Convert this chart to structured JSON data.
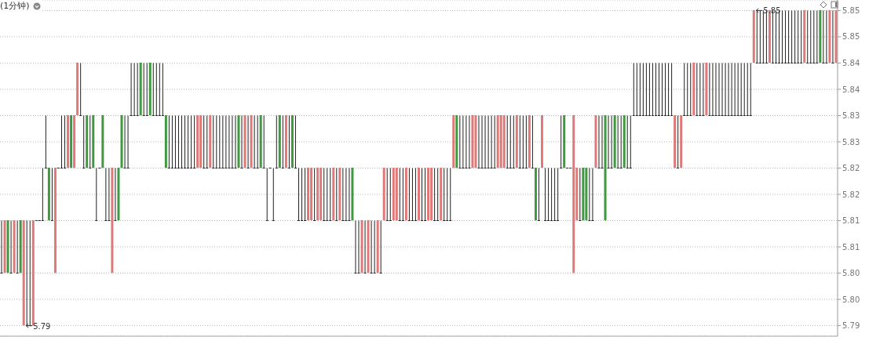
{
  "chart_data": {
    "type": "candlestick",
    "title": "(1分钟)",
    "categories": [
      null,
      null,
      null,
      null,
      null,
      null,
      null,
      null,
      null,
      null,
      null,
      null,
      null,
      null,
      null,
      null,
      null,
      null,
      null,
      null,
      null,
      null,
      null,
      null,
      null,
      null,
      null,
      null,
      null,
      null,
      null,
      null,
      null,
      null,
      null,
      null,
      null,
      null,
      null,
      null,
      null,
      null,
      null,
      null,
      null,
      null,
      null,
      null,
      null,
      null,
      null,
      null,
      null,
      null,
      null,
      null,
      null,
      null,
      null,
      null,
      null,
      null,
      null,
      null,
      null,
      null,
      null,
      null,
      null,
      null,
      null,
      null,
      null,
      null,
      null,
      null,
      null,
      null,
      null,
      null,
      null,
      null,
      null,
      null,
      null,
      null,
      null,
      null,
      null,
      null,
      null,
      null,
      null,
      null,
      null,
      null,
      null,
      null,
      null,
      null,
      null,
      null,
      null,
      null,
      null,
      null,
      null,
      null,
      null,
      null,
      null,
      null,
      null,
      null,
      null,
      null,
      null,
      null,
      null,
      null,
      null,
      null,
      null,
      null,
      null,
      null,
      null,
      null,
      null,
      null,
      null,
      null,
      null,
      null,
      null,
      null,
      null,
      null,
      null,
      null,
      null,
      null,
      null,
      null,
      null,
      null,
      null,
      null,
      null,
      null,
      null,
      null,
      null,
      null,
      null,
      null,
      null,
      null,
      null,
      null,
      null,
      null,
      null,
      null,
      null,
      null,
      null,
      null,
      null,
      null,
      null,
      null,
      null,
      null,
      null,
      null,
      null,
      null,
      null,
      null,
      null,
      null,
      null,
      null,
      null,
      null,
      null,
      null,
      null,
      null,
      null,
      null,
      null,
      null,
      null,
      null,
      null,
      null,
      null,
      null,
      null,
      null,
      null,
      null,
      null,
      null,
      null,
      null,
      null,
      null,
      null,
      null,
      null,
      null,
      null,
      null,
      null,
      null,
      null,
      null,
      null,
      null,
      null,
      null,
      null,
      null,
      null,
      null,
      null,
      null,
      null,
      null,
      null,
      null,
      null,
      null,
      null,
      null,
      null,
      null,
      null,
      null,
      null,
      null,
      null,
      null,
      null,
      null,
      null,
      null,
      null,
      null,
      null,
      null,
      null,
      null,
      null,
      null,
      null,
      null,
      null,
      null,
      null,
      null,
      null
    ],
    "ohlc": [
      [
        5.8,
        5.81,
        5.8,
        5.8
      ],
      [
        5.8,
        5.81,
        5.8,
        5.81
      ],
      [
        5.81,
        5.81,
        5.8,
        5.8
      ],
      [
        5.8,
        5.81,
        5.8,
        5.8
      ],
      [
        5.8,
        5.81,
        5.8,
        5.81
      ],
      [
        5.8,
        5.81,
        5.8,
        5.8
      ],
      [
        5.81,
        5.81,
        5.8,
        5.8
      ],
      [
        5.79,
        5.81,
        5.79,
        5.81
      ],
      [
        5.79,
        5.81,
        5.79,
        5.79
      ],
      [
        5.79,
        5.81,
        5.79,
        5.79
      ],
      [
        5.79,
        5.81,
        5.79,
        5.81
      ],
      [
        5.81,
        5.81,
        5.81,
        5.81
      ],
      [
        5.81,
        5.81,
        5.81,
        5.81
      ],
      [
        5.81,
        5.82,
        5.81,
        5.81
      ],
      [
        5.82,
        5.83,
        5.82,
        5.82
      ],
      [
        5.82,
        5.82,
        5.81,
        5.81
      ],
      [
        5.81,
        5.82,
        5.81,
        5.81
      ],
      [
        5.8,
        5.82,
        5.8,
        5.82
      ],
      [
        5.82,
        5.82,
        5.82,
        5.82
      ],
      [
        5.82,
        5.83,
        5.82,
        5.82
      ],
      [
        5.82,
        5.83,
        5.82,
        5.82
      ],
      [
        5.82,
        5.83,
        5.82,
        5.83
      ],
      [
        5.83,
        5.83,
        5.82,
        5.82
      ],
      [
        5.82,
        5.83,
        5.82,
        5.83
      ],
      [
        5.83,
        5.84,
        5.83,
        5.84
      ],
      [
        5.83,
        5.84,
        5.83,
        5.83
      ],
      [
        5.82,
        5.83,
        5.82,
        5.82
      ],
      [
        5.83,
        5.83,
        5.82,
        5.82
      ],
      [
        5.82,
        5.83,
        5.82,
        5.82
      ],
      [
        5.83,
        5.83,
        5.82,
        5.82
      ],
      [
        5.81,
        5.82,
        5.81,
        5.81
      ],
      [
        5.82,
        5.82,
        5.82,
        5.82
      ],
      [
        5.83,
        5.83,
        5.82,
        5.82
      ],
      [
        5.81,
        5.82,
        5.81,
        5.81
      ],
      [
        5.81,
        5.82,
        5.81,
        5.81
      ],
      [
        5.8,
        5.82,
        5.8,
        5.82
      ],
      [
        5.81,
        5.82,
        5.81,
        5.81
      ],
      [
        5.82,
        5.82,
        5.81,
        5.81
      ],
      [
        5.83,
        5.83,
        5.82,
        5.82
      ],
      [
        5.82,
        5.83,
        5.82,
        5.82
      ],
      [
        5.82,
        5.83,
        5.82,
        5.82
      ],
      [
        5.83,
        5.84,
        5.83,
        5.83
      ],
      [
        5.83,
        5.84,
        5.83,
        5.83
      ],
      [
        5.83,
        5.84,
        5.83,
        5.83
      ],
      [
        5.84,
        5.84,
        5.83,
        5.83
      ],
      [
        5.83,
        5.84,
        5.83,
        5.83
      ],
      [
        5.83,
        5.84,
        5.83,
        5.83
      ],
      [
        5.84,
        5.84,
        5.83,
        5.83
      ],
      [
        5.83,
        5.84,
        5.83,
        5.83
      ],
      [
        5.83,
        5.84,
        5.83,
        5.83
      ],
      [
        5.83,
        5.84,
        5.83,
        5.83
      ],
      [
        5.83,
        5.84,
        5.83,
        5.83
      ],
      [
        5.83,
        5.83,
        5.82,
        5.82
      ],
      [
        5.82,
        5.83,
        5.82,
        5.82
      ],
      [
        5.82,
        5.83,
        5.82,
        5.82
      ],
      [
        5.82,
        5.83,
        5.82,
        5.82
      ],
      [
        5.82,
        5.83,
        5.82,
        5.82
      ],
      [
        5.82,
        5.83,
        5.82,
        5.82
      ],
      [
        5.82,
        5.83,
        5.82,
        5.82
      ],
      [
        5.82,
        5.83,
        5.82,
        5.82
      ],
      [
        5.82,
        5.83,
        5.82,
        5.82
      ],
      [
        5.82,
        5.83,
        5.82,
        5.82
      ],
      [
        5.82,
        5.83,
        5.82,
        5.83
      ],
      [
        5.82,
        5.83,
        5.82,
        5.83
      ],
      [
        5.82,
        5.83,
        5.82,
        5.82
      ],
      [
        5.82,
        5.83,
        5.82,
        5.82
      ],
      [
        5.82,
        5.83,
        5.82,
        5.83
      ],
      [
        5.82,
        5.83,
        5.82,
        5.82
      ],
      [
        5.82,
        5.83,
        5.82,
        5.82
      ],
      [
        5.82,
        5.83,
        5.82,
        5.82
      ],
      [
        5.82,
        5.83,
        5.82,
        5.82
      ],
      [
        5.82,
        5.83,
        5.82,
        5.82
      ],
      [
        5.82,
        5.83,
        5.82,
        5.82
      ],
      [
        5.82,
        5.83,
        5.82,
        5.82
      ],
      [
        5.82,
        5.83,
        5.82,
        5.82
      ],
      [
        5.83,
        5.83,
        5.82,
        5.82
      ],
      [
        5.82,
        5.83,
        5.82,
        5.82
      ],
      [
        5.82,
        5.83,
        5.82,
        5.83
      ],
      [
        5.82,
        5.83,
        5.82,
        5.82
      ],
      [
        5.82,
        5.83,
        5.82,
        5.83
      ],
      [
        5.82,
        5.83,
        5.82,
        5.82
      ],
      [
        5.82,
        5.83,
        5.82,
        5.82
      ],
      [
        5.83,
        5.83,
        5.82,
        5.82
      ],
      [
        5.82,
        5.83,
        5.82,
        5.82
      ],
      [
        5.81,
        5.82,
        5.81,
        5.81
      ],
      [
        5.82,
        5.82,
        5.82,
        5.82
      ],
      [
        5.81,
        5.82,
        5.81,
        5.81
      ],
      [
        5.82,
        5.83,
        5.82,
        5.82
      ],
      [
        5.83,
        5.83,
        5.82,
        5.82
      ],
      [
        5.82,
        5.83,
        5.82,
        5.82
      ],
      [
        5.82,
        5.83,
        5.82,
        5.83
      ],
      [
        5.82,
        5.83,
        5.82,
        5.82
      ],
      [
        5.83,
        5.83,
        5.82,
        5.82
      ],
      [
        5.82,
        5.83,
        5.82,
        5.82
      ],
      [
        5.81,
        5.82,
        5.81,
        5.81
      ],
      [
        5.81,
        5.82,
        5.81,
        5.81
      ],
      [
        5.81,
        5.82,
        5.81,
        5.81
      ],
      [
        5.81,
        5.82,
        5.81,
        5.82
      ],
      [
        5.81,
        5.82,
        5.81,
        5.82
      ],
      [
        5.81,
        5.82,
        5.81,
        5.81
      ],
      [
        5.81,
        5.82,
        5.81,
        5.82
      ],
      [
        5.81,
        5.82,
        5.81,
        5.82
      ],
      [
        5.81,
        5.82,
        5.81,
        5.81
      ],
      [
        5.81,
        5.82,
        5.81,
        5.81
      ],
      [
        5.81,
        5.82,
        5.81,
        5.81
      ],
      [
        5.81,
        5.82,
        5.81,
        5.82
      ],
      [
        5.81,
        5.82,
        5.81,
        5.81
      ],
      [
        5.81,
        5.82,
        5.81,
        5.82
      ],
      [
        5.81,
        5.82,
        5.81,
        5.81
      ],
      [
        5.81,
        5.82,
        5.81,
        5.81
      ],
      [
        5.81,
        5.82,
        5.81,
        5.81
      ],
      [
        5.82,
        5.82,
        5.81,
        5.81
      ],
      [
        5.8,
        5.81,
        5.8,
        5.8
      ],
      [
        5.8,
        5.81,
        5.8,
        5.8
      ],
      [
        5.8,
        5.81,
        5.8,
        5.81
      ],
      [
        5.8,
        5.81,
        5.8,
        5.8
      ],
      [
        5.8,
        5.81,
        5.8,
        5.81
      ],
      [
        5.8,
        5.81,
        5.8,
        5.8
      ],
      [
        5.8,
        5.81,
        5.8,
        5.8
      ],
      [
        5.8,
        5.81,
        5.8,
        5.81
      ],
      [
        5.8,
        5.81,
        5.8,
        5.8
      ],
      [
        5.81,
        5.82,
        5.81,
        5.82
      ],
      [
        5.81,
        5.82,
        5.81,
        5.81
      ],
      [
        5.81,
        5.82,
        5.81,
        5.81
      ],
      [
        5.81,
        5.82,
        5.81,
        5.82
      ],
      [
        5.81,
        5.82,
        5.81,
        5.82
      ],
      [
        5.81,
        5.82,
        5.81,
        5.81
      ],
      [
        5.81,
        5.82,
        5.81,
        5.81
      ],
      [
        5.81,
        5.82,
        5.81,
        5.82
      ],
      [
        5.81,
        5.82,
        5.81,
        5.81
      ],
      [
        5.81,
        5.82,
        5.81,
        5.81
      ],
      [
        5.81,
        5.82,
        5.81,
        5.81
      ],
      [
        5.81,
        5.82,
        5.81,
        5.82
      ],
      [
        5.81,
        5.82,
        5.81,
        5.81
      ],
      [
        5.81,
        5.82,
        5.81,
        5.81
      ],
      [
        5.81,
        5.82,
        5.81,
        5.82
      ],
      [
        5.81,
        5.82,
        5.81,
        5.82
      ],
      [
        5.81,
        5.82,
        5.81,
        5.81
      ],
      [
        5.81,
        5.82,
        5.81,
        5.81
      ],
      [
        5.81,
        5.82,
        5.81,
        5.82
      ],
      [
        5.81,
        5.82,
        5.81,
        5.81
      ],
      [
        5.81,
        5.82,
        5.81,
        5.81
      ],
      [
        5.81,
        5.82,
        5.81,
        5.81
      ],
      [
        5.82,
        5.83,
        5.82,
        5.83
      ],
      [
        5.83,
        5.83,
        5.82,
        5.82
      ],
      [
        5.82,
        5.83,
        5.82,
        5.82
      ],
      [
        5.82,
        5.83,
        5.82,
        5.82
      ],
      [
        5.82,
        5.83,
        5.82,
        5.82
      ],
      [
        5.82,
        5.83,
        5.82,
        5.82
      ],
      [
        5.82,
        5.83,
        5.82,
        5.83
      ],
      [
        5.82,
        5.83,
        5.82,
        5.83
      ],
      [
        5.82,
        5.83,
        5.82,
        5.82
      ],
      [
        5.82,
        5.83,
        5.82,
        5.82
      ],
      [
        5.82,
        5.83,
        5.82,
        5.82
      ],
      [
        5.82,
        5.83,
        5.82,
        5.82
      ],
      [
        5.82,
        5.83,
        5.82,
        5.82
      ],
      [
        5.82,
        5.83,
        5.82,
        5.82
      ],
      [
        5.82,
        5.83,
        5.82,
        5.83
      ],
      [
        5.82,
        5.83,
        5.82,
        5.83
      ],
      [
        5.82,
        5.83,
        5.82,
        5.83
      ],
      [
        5.82,
        5.83,
        5.82,
        5.82
      ],
      [
        5.82,
        5.83,
        5.82,
        5.82
      ],
      [
        5.82,
        5.83,
        5.82,
        5.82
      ],
      [
        5.82,
        5.83,
        5.82,
        5.83
      ],
      [
        5.82,
        5.83,
        5.82,
        5.82
      ],
      [
        5.82,
        5.83,
        5.82,
        5.82
      ],
      [
        5.82,
        5.83,
        5.82,
        5.82
      ],
      [
        5.82,
        5.83,
        5.82,
        5.83
      ],
      [
        5.82,
        5.83,
        5.82,
        5.82
      ],
      [
        5.82,
        5.82,
        5.81,
        5.81
      ],
      [
        5.81,
        5.82,
        5.81,
        5.81
      ],
      [
        5.82,
        5.83,
        5.82,
        5.83
      ],
      [
        5.81,
        5.82,
        5.81,
        5.81
      ],
      [
        5.81,
        5.82,
        5.81,
        5.81
      ],
      [
        5.81,
        5.82,
        5.81,
        5.81
      ],
      [
        5.81,
        5.82,
        5.81,
        5.81
      ],
      [
        5.81,
        5.82,
        5.81,
        5.81
      ],
      [
        5.82,
        5.83,
        5.82,
        5.82
      ],
      [
        5.83,
        5.83,
        5.82,
        5.82
      ],
      [
        5.82,
        5.82,
        5.82,
        5.82
      ],
      [
        5.82,
        5.82,
        5.82,
        5.82
      ],
      [
        5.8,
        5.83,
        5.8,
        5.83
      ],
      [
        5.81,
        5.82,
        5.81,
        5.82
      ],
      [
        5.81,
        5.82,
        5.81,
        5.81
      ],
      [
        5.82,
        5.82,
        5.81,
        5.81
      ],
      [
        5.82,
        5.82,
        5.81,
        5.81
      ],
      [
        5.81,
        5.82,
        5.81,
        5.81
      ],
      [
        5.81,
        5.82,
        5.81,
        5.81
      ],
      [
        5.82,
        5.83,
        5.82,
        5.83
      ],
      [
        5.82,
        5.83,
        5.82,
        5.82
      ],
      [
        5.82,
        5.83,
        5.82,
        5.82
      ],
      [
        5.83,
        5.83,
        5.81,
        5.81
      ],
      [
        5.82,
        5.83,
        5.82,
        5.82
      ],
      [
        5.82,
        5.83,
        5.82,
        5.82
      ],
      [
        5.83,
        5.83,
        5.82,
        5.82
      ],
      [
        5.82,
        5.83,
        5.82,
        5.82
      ],
      [
        5.82,
        5.83,
        5.82,
        5.82
      ],
      [
        5.83,
        5.83,
        5.82,
        5.82
      ],
      [
        5.82,
        5.83,
        5.82,
        5.82
      ],
      [
        5.82,
        5.83,
        5.82,
        5.82
      ],
      [
        5.83,
        5.84,
        5.83,
        5.83
      ],
      [
        5.83,
        5.84,
        5.83,
        5.83
      ],
      [
        5.83,
        5.84,
        5.83,
        5.83
      ],
      [
        5.83,
        5.84,
        5.83,
        5.83
      ],
      [
        5.83,
        5.84,
        5.83,
        5.83
      ],
      [
        5.83,
        5.84,
        5.83,
        5.83
      ],
      [
        5.83,
        5.84,
        5.83,
        5.83
      ],
      [
        5.83,
        5.84,
        5.83,
        5.83
      ],
      [
        5.83,
        5.84,
        5.83,
        5.83
      ],
      [
        5.83,
        5.84,
        5.83,
        5.83
      ],
      [
        5.83,
        5.84,
        5.83,
        5.83
      ],
      [
        5.83,
        5.84,
        5.83,
        5.83
      ],
      [
        5.83,
        5.84,
        5.83,
        5.83
      ],
      [
        5.82,
        5.83,
        5.82,
        5.83
      ],
      [
        5.82,
        5.83,
        5.82,
        5.82
      ],
      [
        5.82,
        5.83,
        5.82,
        5.83
      ],
      [
        5.83,
        5.84,
        5.83,
        5.83
      ],
      [
        5.83,
        5.84,
        5.83,
        5.83
      ],
      [
        5.83,
        5.84,
        5.83,
        5.83
      ],
      [
        5.83,
        5.84,
        5.83,
        5.84
      ],
      [
        5.83,
        5.84,
        5.83,
        5.83
      ],
      [
        5.83,
        5.84,
        5.83,
        5.83
      ],
      [
        5.83,
        5.84,
        5.83,
        5.83
      ],
      [
        5.83,
        5.84,
        5.83,
        5.84
      ],
      [
        5.83,
        5.84,
        5.83,
        5.83
      ],
      [
        5.83,
        5.84,
        5.83,
        5.83
      ],
      [
        5.83,
        5.84,
        5.83,
        5.83
      ],
      [
        5.83,
        5.84,
        5.83,
        5.83
      ],
      [
        5.83,
        5.84,
        5.83,
        5.83
      ],
      [
        5.83,
        5.84,
        5.83,
        5.83
      ],
      [
        5.83,
        5.84,
        5.83,
        5.83
      ],
      [
        5.83,
        5.84,
        5.83,
        5.83
      ],
      [
        5.83,
        5.84,
        5.83,
        5.83
      ],
      [
        5.83,
        5.84,
        5.83,
        5.83
      ],
      [
        5.83,
        5.84,
        5.83,
        5.83
      ],
      [
        5.83,
        5.84,
        5.83,
        5.83
      ],
      [
        5.83,
        5.84,
        5.83,
        5.83
      ],
      [
        5.83,
        5.84,
        5.83,
        5.83
      ],
      [
        5.84,
        5.85,
        5.84,
        5.85
      ],
      [
        5.84,
        5.85,
        5.84,
        5.84
      ],
      [
        5.84,
        5.85,
        5.84,
        5.84
      ],
      [
        5.84,
        5.85,
        5.84,
        5.84
      ],
      [
        5.84,
        5.85,
        5.84,
        5.84
      ],
      [
        5.84,
        5.85,
        5.84,
        5.85
      ],
      [
        5.84,
        5.85,
        5.84,
        5.84
      ],
      [
        5.84,
        5.85,
        5.84,
        5.84
      ],
      [
        5.84,
        5.85,
        5.84,
        5.84
      ],
      [
        5.84,
        5.85,
        5.84,
        5.84
      ],
      [
        5.84,
        5.85,
        5.84,
        5.84
      ],
      [
        5.84,
        5.85,
        5.84,
        5.84
      ],
      [
        5.84,
        5.85,
        5.84,
        5.84
      ],
      [
        5.84,
        5.85,
        5.84,
        5.84
      ],
      [
        5.84,
        5.85,
        5.84,
        5.84
      ],
      [
        5.84,
        5.85,
        5.84,
        5.84
      ],
      [
        5.84,
        5.85,
        5.84,
        5.85
      ],
      [
        5.84,
        5.85,
        5.84,
        5.84
      ],
      [
        5.84,
        5.85,
        5.84,
        5.84
      ],
      [
        5.84,
        5.85,
        5.84,
        5.84
      ],
      [
        5.84,
        5.85,
        5.84,
        5.84
      ],
      [
        5.85,
        5.85,
        5.84,
        5.84
      ],
      [
        5.84,
        5.85,
        5.84,
        5.84
      ],
      [
        5.84,
        5.85,
        5.84,
        5.84
      ],
      [
        5.84,
        5.85,
        5.84,
        5.85
      ],
      [
        5.84,
        5.85,
        5.84,
        5.84
      ],
      [
        5.84,
        5.85,
        5.84,
        5.85
      ]
    ],
    "ylim": [
      5.788,
      5.852
    ],
    "yticks": [
      5.79,
      {
        "value": 5.795,
        "label": "5.80"
      },
      {
        "value": 5.8,
        "label": "5.80"
      },
      {
        "value": 5.805,
        "label": "5.81"
      },
      {
        "value": 5.81,
        "label": "5.81"
      },
      {
        "value": 5.815,
        "label": "5.82"
      },
      {
        "value": 5.82,
        "label": "5.82"
      },
      {
        "value": 5.825,
        "label": "5.83"
      },
      {
        "value": 5.83,
        "label": "5.83"
      },
      {
        "value": 5.835,
        "label": "5.84"
      },
      {
        "value": 5.84,
        "label": "5.84"
      },
      {
        "value": 5.845,
        "label": "5.85"
      },
      5.85
    ],
    "annotations": [
      "5.79",
      "5.85"
    ],
    "grid": "y",
    "tick_labels": "y"
  }
}
